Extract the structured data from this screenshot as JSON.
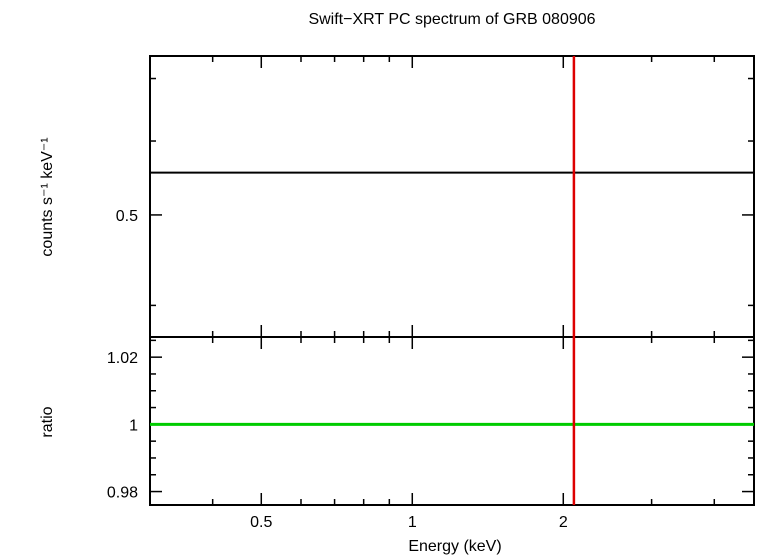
{
  "chart_data": {
    "title": "Swift−XRT PC spectrum of GRB 080906",
    "type": "line",
    "x_axis": {
      "label": "Energy (keV)",
      "scale": "log",
      "range": [
        0.3,
        4.8
      ],
      "tick_values": [
        0.5,
        1,
        2
      ],
      "tick_labels": [
        "0.5",
        "1",
        "2"
      ]
    },
    "panels": [
      {
        "name": "spectrum",
        "ylabel": "counts s⁻¹ keV⁻¹",
        "yscale": "log",
        "ylim": [
          0.37,
          0.74
        ],
        "y_ticks": [
          0.5
        ],
        "y_tick_labels": [
          "0.5"
        ],
        "series": [
          {
            "style": "black step line",
            "color": "#000000",
            "x": [
              0.3,
              4.8
            ],
            "y": [
              0.555,
              0.555
            ]
          }
        ]
      },
      {
        "name": "ratio",
        "ylabel": "ratio",
        "yscale": "linear",
        "ylim": [
          0.976,
          1.026
        ],
        "y_ticks": [
          0.98,
          1,
          1.02
        ],
        "y_tick_labels": [
          "0.98",
          "1",
          "1.02"
        ],
        "series": [
          {
            "style": "green model line",
            "color": "#00cc00",
            "x": [
              0.3,
              4.8
            ],
            "y": [
              1,
              1
            ]
          }
        ]
      }
    ],
    "vertical_markers": [
      {
        "x": 2.1,
        "color": "#dd0000"
      }
    ]
  }
}
